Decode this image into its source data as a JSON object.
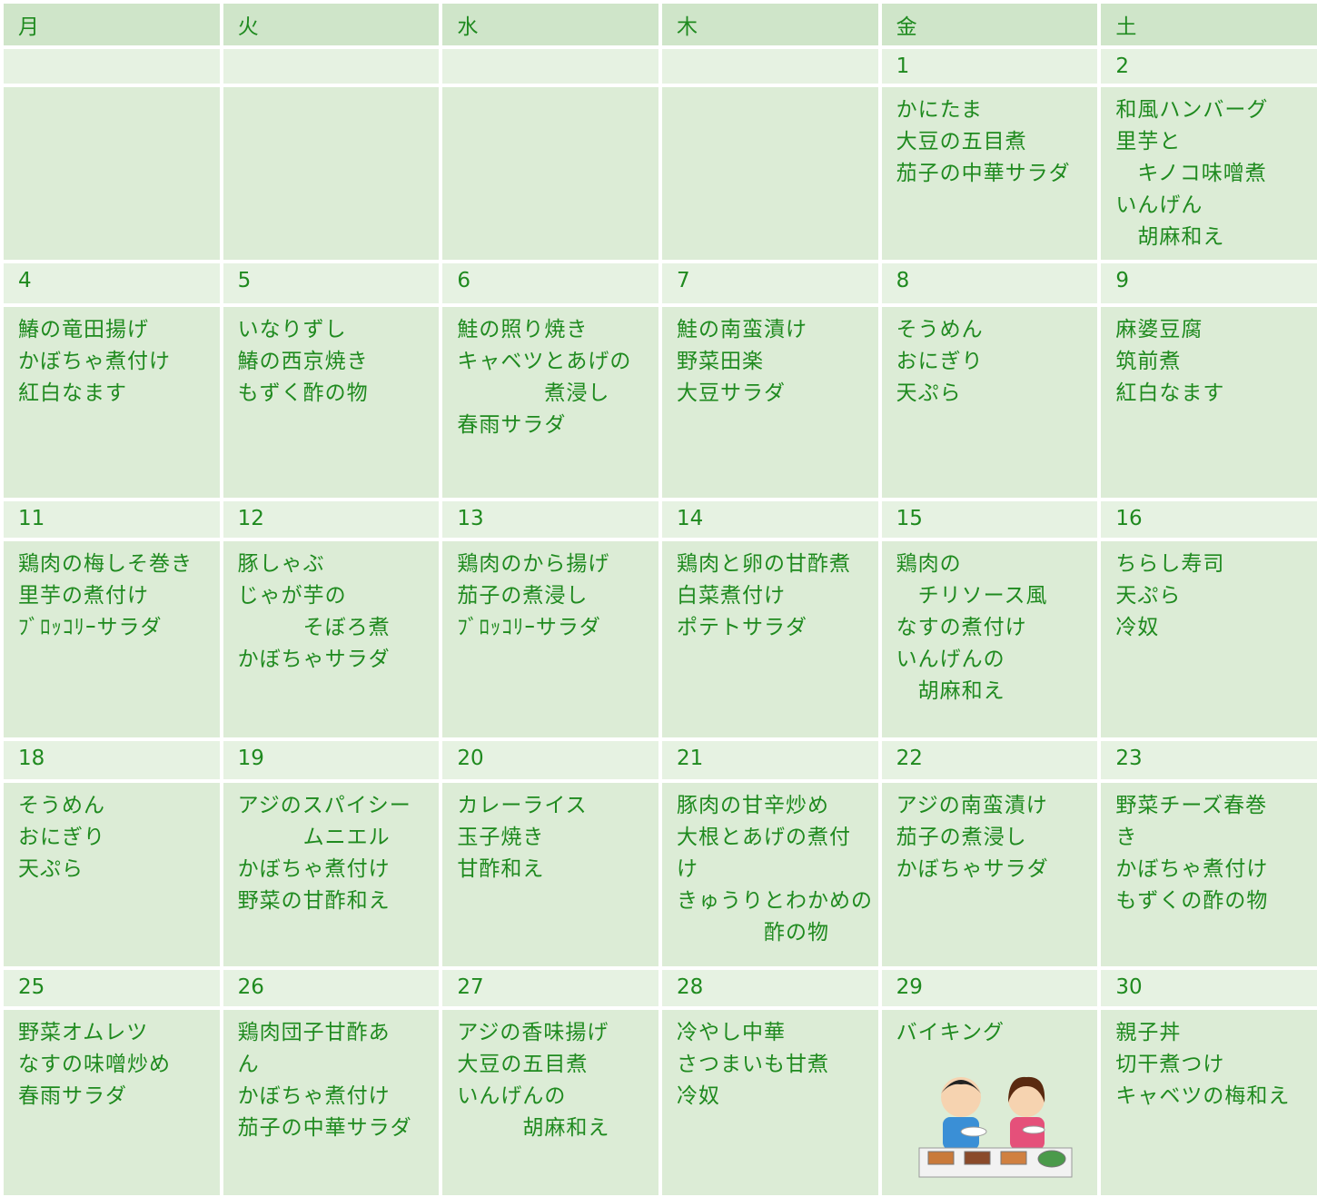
{
  "weekdays": [
    "月",
    "火",
    "水",
    "木",
    "金",
    "土"
  ],
  "weeks": [
    {
      "dates": [
        null,
        null,
        null,
        null,
        1,
        2
      ],
      "menus": [
        [],
        [],
        [],
        [],
        [
          "かにたま",
          "大豆の五目煮",
          "茄子の中華サラダ"
        ],
        [
          "和風ハンバーグ",
          "里芋と",
          "　キノコ味噌煮",
          "いんげん",
          "　胡麻和え"
        ]
      ]
    },
    {
      "dates": [
        4,
        5,
        6,
        7,
        8,
        9
      ],
      "menus": [
        [
          "鰆の竜田揚げ",
          "かぼちゃ煮付け",
          "紅白なます"
        ],
        [
          "いなりずし",
          "鰆の西京焼き",
          "もずく酢の物"
        ],
        [
          "鮭の照り焼き",
          "キャベツとあげの",
          "　　　　煮浸し",
          "春雨サラダ"
        ],
        [
          "鮭の南蛮漬け",
          "野菜田楽",
          "大豆サラダ"
        ],
        [
          "そうめん",
          "おにぎり",
          "天ぷら"
        ],
        [
          "麻婆豆腐",
          "筑前煮",
          "紅白なます"
        ]
      ]
    },
    {
      "dates": [
        11,
        12,
        13,
        14,
        15,
        16
      ],
      "menus": [
        [
          "鶏肉の梅しそ巻き",
          "里芋の煮付け",
          "ﾌﾞﾛｯｺﾘｰサラダ"
        ],
        [
          "豚しゃぶ",
          "じゃが芋の",
          "　　　そぼろ煮",
          "かぼちゃサラダ"
        ],
        [
          "鶏肉のから揚げ",
          "茄子の煮浸し",
          "ﾌﾞﾛｯｺﾘｰサラダ"
        ],
        [
          "鶏肉と卵の甘酢煮",
          "白菜煮付け",
          "ポテトサラダ"
        ],
        [
          "鶏肉の",
          "　チリソース風",
          "なすの煮付け",
          "いんげんの",
          "　胡麻和え"
        ],
        [
          "ちらし寿司",
          "天ぷら",
          "冷奴"
        ]
      ]
    },
    {
      "dates": [
        18,
        19,
        20,
        21,
        22,
        23
      ],
      "menus": [
        [
          "そうめん",
          "おにぎり",
          "天ぷら"
        ],
        [
          "アジのスパイシー",
          "　　　ムニエル",
          "かぼちゃ煮付け",
          "野菜の甘酢和え"
        ],
        [
          "カレーライス",
          "玉子焼き",
          "甘酢和え"
        ],
        [
          "豚肉の甘辛炒め",
          "大根とあげの煮付",
          "け",
          "きゅうりとわかめの",
          "　　　　酢の物"
        ],
        [
          "アジの南蛮漬け",
          "茄子の煮浸し",
          "かぼちゃサラダ"
        ],
        [
          "野菜チーズ春巻",
          "き",
          "かぼちゃ煮付け",
          "もずくの酢の物"
        ]
      ]
    },
    {
      "dates": [
        25,
        26,
        27,
        28,
        29,
        30
      ],
      "menus": [
        [
          "野菜オムレツ",
          "なすの味噌炒め",
          "春雨サラダ"
        ],
        [
          "鶏肉団子甘酢あ",
          "ん",
          "かぼちゃ煮付け",
          "茄子の中華サラダ"
        ],
        [
          "アジの香味揚げ",
          "大豆の五目煮",
          "いんげんの",
          "　　　胡麻和え"
        ],
        [
          "冷やし中華",
          "さつまいも甘煮",
          "冷奴"
        ],
        [
          "バイキング"
        ],
        [
          "親子丼",
          "切干煮つけ",
          "キャベツの梅和え"
        ]
      ]
    }
  ]
}
